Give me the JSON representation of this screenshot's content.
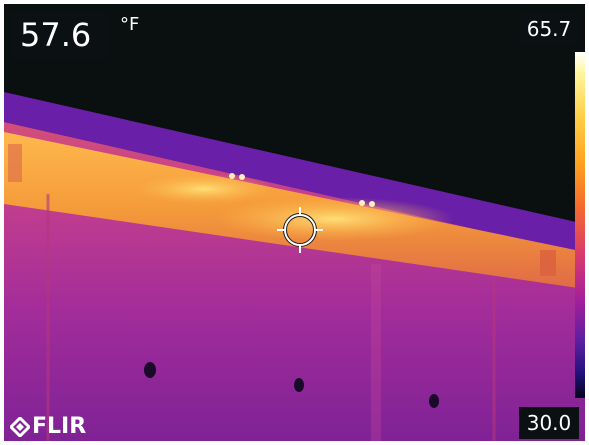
{
  "readout": {
    "value": "57.6",
    "unit": "°F"
  },
  "scale": {
    "max": "65.7",
    "min": "30.0"
  },
  "brand": {
    "name": "FLIR"
  },
  "crosshair": {
    "icon": "crosshair-icon"
  },
  "colors": {
    "background": "#0a0f10",
    "roof_hot": "#f5a640",
    "wall": "#b83aa0",
    "sky": "#0b1012"
  }
}
